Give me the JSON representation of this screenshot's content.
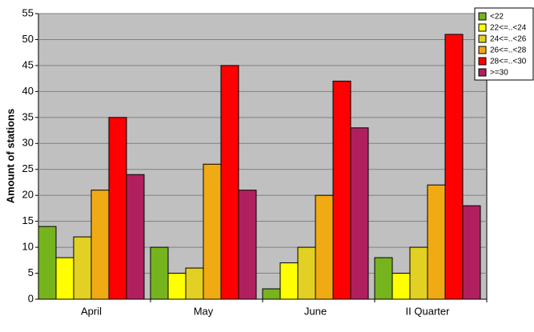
{
  "chart_data": {
    "type": "bar",
    "y_label": "Amount of stations",
    "categories": [
      "April",
      "May",
      "June",
      "II Quarter"
    ],
    "series": [
      {
        "name": "<22",
        "color": "#76b41e",
        "values": [
          14,
          10,
          2,
          8
        ]
      },
      {
        "name": "22<=..<24",
        "color": "#ffff00",
        "values": [
          8,
          5,
          7,
          5
        ]
      },
      {
        "name": "24<=..<26",
        "color": "#e2d022",
        "values": [
          12,
          6,
          10,
          10
        ]
      },
      {
        "name": "26<=..<28",
        "color": "#f0aa14",
        "values": [
          21,
          26,
          20,
          22
        ]
      },
      {
        "name": "28<=..<30",
        "color": "#ff0000",
        "values": [
          35,
          45,
          42,
          51
        ]
      },
      {
        "name": ">=30",
        "color": "#b0205e",
        "values": [
          24,
          21,
          33,
          18
        ]
      }
    ],
    "ylim": [
      0,
      55
    ],
    "yticks": [
      0,
      5,
      10,
      15,
      20,
      25,
      30,
      35,
      40,
      45,
      50,
      55
    ],
    "grid": true,
    "legend": "top-right"
  }
}
